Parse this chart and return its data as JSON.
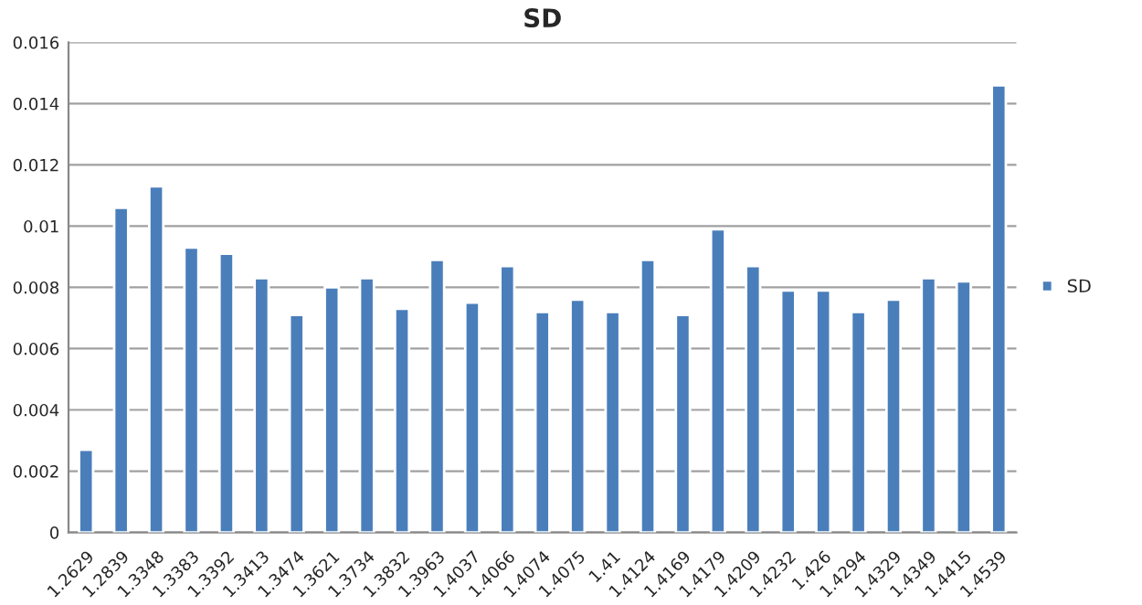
{
  "chart_data": {
    "type": "bar",
    "title": "SD",
    "categories": [
      "1.2629",
      "1.2839",
      "1.3348",
      "1.3383",
      "1.3392",
      "1.3413",
      "1.3474",
      "1.3621",
      "1.3734",
      "1.3832",
      "1.3963",
      "1.4037",
      "1.4066",
      "1.4074",
      "1.4075",
      "1.41",
      "1.4124",
      "1.4169",
      "1.4179",
      "1.4209",
      "1.4232",
      "1.426",
      "1.4294",
      "1.4329",
      "1.4349",
      "1.4415",
      "1.4539"
    ],
    "series": [
      {
        "name": "SD",
        "color": "#4a7ebb",
        "values": [
          0.0027,
          0.0106,
          0.0113,
          0.0093,
          0.0091,
          0.0083,
          0.0071,
          0.008,
          0.0083,
          0.0073,
          0.0089,
          0.0075,
          0.0087,
          0.0072,
          0.0076,
          0.0072,
          0.0089,
          0.0071,
          0.0099,
          0.0087,
          0.0079,
          0.0079,
          0.0072,
          0.0076,
          0.0083,
          0.0082,
          0.0146
        ]
      }
    ],
    "ylim": [
      0,
      0.016
    ],
    "yticks": [
      0,
      0.002,
      0.004,
      0.006,
      0.008,
      0.01,
      0.012,
      0.014,
      0.016
    ],
    "grid": "y",
    "legend": "right"
  }
}
